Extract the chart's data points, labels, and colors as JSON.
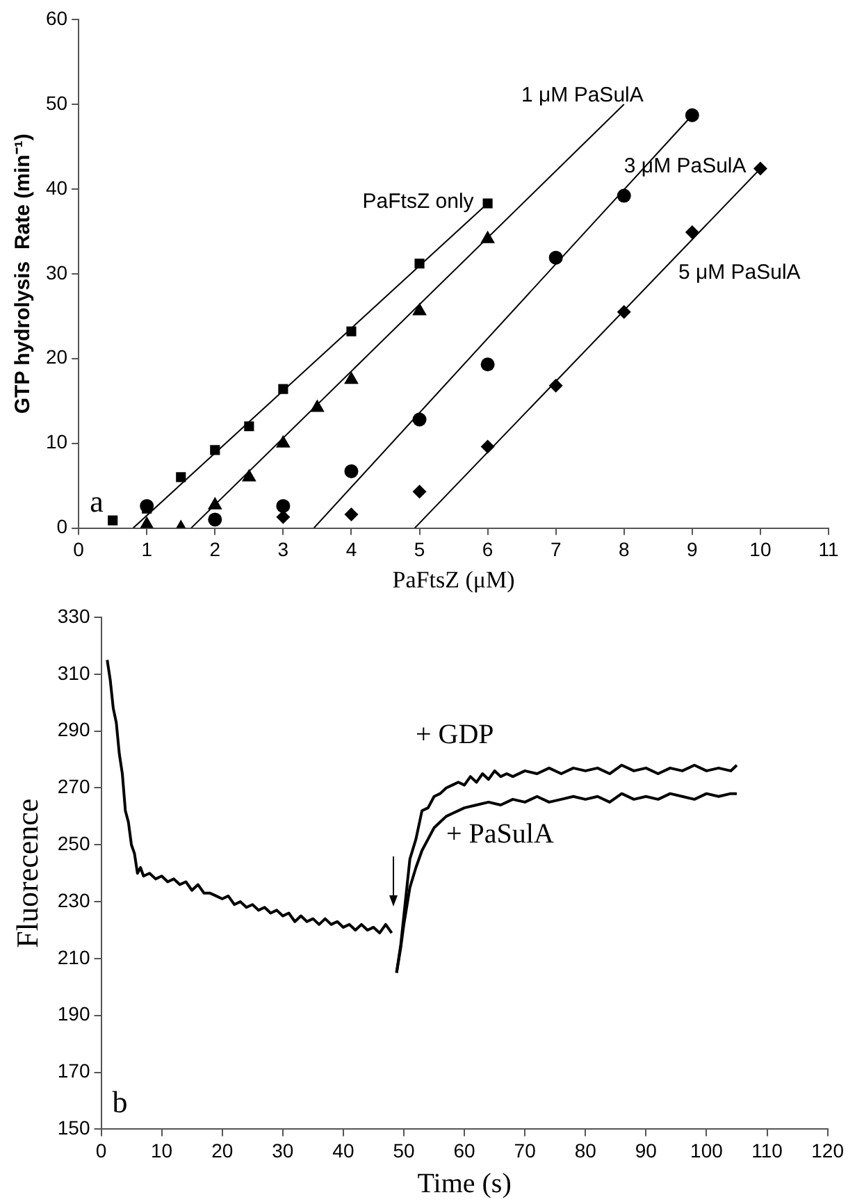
{
  "chart_data": [
    {
      "type": "scatter",
      "xlabel": "PaFtsZ (μM)",
      "ylabel": "GTP hydrolysis  Rate (min⁻¹)",
      "xlim": [
        0,
        11
      ],
      "xticks": [
        0,
        1,
        2,
        3,
        4,
        5,
        6,
        7,
        8,
        9,
        10,
        11
      ],
      "ylim": [
        0,
        60
      ],
      "yticks": [
        0,
        10,
        20,
        30,
        40,
        50,
        60
      ],
      "grid": false,
      "legend": false,
      "series": [
        {
          "name": "PaFtsZ only",
          "color": "#000000",
          "marker": "square",
          "x": [
            0.5,
            1,
            1.5,
            2,
            2.5,
            3,
            4,
            5,
            6
          ],
          "values": [
            0.9,
            2.3,
            6,
            9.2,
            12,
            16.4,
            23.2,
            31.2,
            38.3
          ]
        },
        {
          "color": "#000000",
          "marker": "triangle",
          "x": [
            1,
            1.5,
            2,
            2.5,
            3,
            3.5,
            4,
            5,
            6
          ],
          "values": [
            0.4,
            0,
            2.7,
            6,
            10,
            14.2,
            17.5,
            25.6,
            34.1
          ]
        },
        {
          "name": "3 μM PaSulA",
          "color": "#000000",
          "marker": "circle",
          "x": [
            1,
            2,
            3,
            4,
            5,
            6,
            7,
            8,
            9
          ],
          "values": [
            2.6,
            1,
            2.6,
            6.7,
            12.8,
            19.3,
            31.9,
            39.2,
            48.7
          ]
        },
        {
          "name": "5 μM PaSulA",
          "color": "#000000",
          "marker": "diamond",
          "x": [
            3,
            4,
            5,
            6,
            7,
            8,
            9,
            10
          ],
          "values": [
            1.3,
            1.6,
            4.3,
            9.6,
            16.8,
            25.5,
            34.9,
            42.4
          ]
        },
        {
          "type": "line",
          "color": "#000000",
          "marker": "none",
          "x": [
            0.8,
            6
          ],
          "values": [
            0,
            38.3
          ]
        },
        {
          "type": "line",
          "name": "1 μM PaSulA",
          "color": "#000000",
          "marker": "none",
          "x": [
            1.65,
            8
          ],
          "values": [
            0,
            50
          ]
        },
        {
          "type": "line",
          "color": "#000000",
          "marker": "none",
          "x": [
            3.45,
            9
          ],
          "values": [
            0,
            48.7
          ]
        },
        {
          "type": "line",
          "color": "#000000",
          "marker": "none",
          "x": [
            4.93,
            10
          ],
          "values": [
            0,
            42.4
          ]
        }
      ],
      "annotations": [
        "a"
      ]
    },
    {
      "type": "line",
      "xlabel": "Time (s)",
      "ylabel": "Fluorecence",
      "xlim": [
        0,
        120
      ],
      "xticks": [
        0,
        10,
        20,
        30,
        40,
        50,
        60,
        70,
        80,
        90,
        100,
        110,
        120
      ],
      "ylim": [
        150,
        330
      ],
      "yticks": [
        150,
        170,
        190,
        210,
        230,
        250,
        270,
        290,
        310,
        330
      ],
      "grid": false,
      "legend": false,
      "marker": "none",
      "series": [
        {
          "color": "#000000",
          "x": [
            1,
            1.5,
            2,
            2.5,
            3,
            3.5,
            4,
            4.5,
            5,
            5.5,
            6,
            6.5,
            7,
            8,
            9,
            10,
            11,
            12,
            13,
            14,
            15,
            16,
            17,
            18,
            19,
            20,
            21,
            22,
            23,
            24,
            25,
            26,
            27,
            28,
            29,
            30,
            31,
            32,
            33,
            34,
            35,
            36,
            37,
            38,
            39,
            40,
            41,
            42,
            43,
            44,
            45,
            46,
            47,
            48
          ],
          "values": [
            315,
            308,
            298,
            293,
            282,
            275,
            262,
            258,
            250,
            247,
            240,
            242,
            239,
            240,
            238,
            239,
            237,
            238,
            236,
            237,
            234,
            236,
            233,
            233,
            232,
            231,
            232,
            229,
            230,
            228,
            229,
            227,
            228,
            226,
            227,
            225,
            226,
            223,
            225,
            223,
            224,
            222,
            224,
            222,
            223,
            221,
            222,
            220,
            222,
            220,
            221,
            219,
            222,
            219
          ]
        },
        {
          "name": "+ GDP",
          "color": "#000000",
          "x": [
            48.8,
            49.5,
            50,
            50.5,
            51,
            52,
            53,
            54,
            55,
            56,
            57,
            58,
            59,
            60,
            61,
            62,
            63,
            64,
            65,
            66,
            67,
            68,
            70,
            72,
            74,
            76,
            78,
            80,
            82,
            84,
            86,
            88,
            90,
            92,
            94,
            96,
            98,
            100,
            102,
            104,
            105
          ],
          "values": [
            205,
            215,
            225,
            235,
            245,
            252,
            262,
            263,
            267,
            268,
            270,
            271,
            272,
            271,
            274,
            272,
            275,
            273,
            276,
            274,
            275,
            274,
            276,
            275,
            277,
            275,
            277,
            276,
            277,
            275,
            278,
            276,
            277,
            275,
            277,
            276,
            278,
            276,
            277,
            276,
            278
          ]
        },
        {
          "name": "+ PaSulA",
          "color": "#000000",
          "x": [
            48.8,
            49.5,
            50,
            51,
            52,
            53,
            54,
            55,
            56,
            57,
            58,
            60,
            62,
            64,
            66,
            68,
            70,
            72,
            74,
            76,
            78,
            80,
            82,
            84,
            86,
            88,
            90,
            92,
            94,
            96,
            98,
            100,
            102,
            104,
            105
          ],
          "values": [
            205,
            214,
            222,
            235,
            242,
            248,
            252,
            256,
            258,
            260,
            261,
            263,
            264,
            265,
            264,
            266,
            265,
            267,
            265,
            266,
            267,
            266,
            267,
            265,
            268,
            266,
            267,
            266,
            268,
            267,
            266,
            268,
            267,
            268,
            268
          ]
        }
      ],
      "annotations": [
        "b"
      ]
    }
  ]
}
